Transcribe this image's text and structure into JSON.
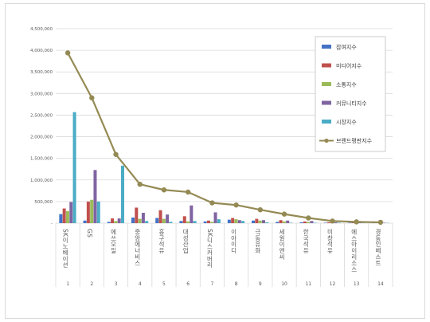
{
  "chart_data": {
    "type": "bar",
    "title": "",
    "xlabel": "",
    "ylabel": "",
    "ylim": [
      0,
      4500000
    ],
    "yticks": [
      0,
      500000,
      1000000,
      1500000,
      2000000,
      2500000,
      3000000,
      3500000,
      4000000,
      4500000
    ],
    "ytick_labels": [
      "-",
      "500,000",
      "1,000,000",
      "1,500,000",
      "2,000,000",
      "2,500,000",
      "3,000,000",
      "3,500,000",
      "4,000,000",
      "4,500,000"
    ],
    "grid": true,
    "legend_position": "top-right",
    "categories": [
      "SK이노베이션",
      "GS",
      "에쓰오일",
      "중앙에너비스",
      "흥구석유",
      "대성산업",
      "SK디스커버리",
      "이아이디",
      "극동유화",
      "세원이앤씨",
      "한국석유",
      "미창석유",
      "에스아이리소스",
      "경동인베스트"
    ],
    "index_labels": [
      "1",
      "2",
      "3",
      "4",
      "5",
      "6",
      "7",
      "8",
      "9",
      "10",
      "11",
      "12",
      "13",
      "14"
    ],
    "series": [
      {
        "name": "참여지수",
        "kind": "bar",
        "color": "#4472c4",
        "values": [
          210000,
          60000,
          30000,
          130000,
          120000,
          50000,
          40000,
          80000,
          60000,
          30000,
          20000,
          10000,
          10000,
          8000
        ]
      },
      {
        "name": "미디어지수",
        "kind": "bar",
        "color": "#c0504d",
        "values": [
          340000,
          500000,
          110000,
          360000,
          300000,
          160000,
          60000,
          120000,
          100000,
          70000,
          40000,
          20000,
          15000,
          10000
        ]
      },
      {
        "name": "소통지수",
        "kind": "bar",
        "color": "#9bbb59",
        "values": [
          280000,
          540000,
          50000,
          100000,
          100000,
          40000,
          30000,
          90000,
          60000,
          40000,
          30000,
          10000,
          10000,
          10000
        ]
      },
      {
        "name": "커뮤니티지수",
        "kind": "bar",
        "color": "#8064a2",
        "values": [
          490000,
          1230000,
          110000,
          240000,
          200000,
          410000,
          250000,
          70000,
          70000,
          60000,
          50000,
          20000,
          15000,
          10000
        ]
      },
      {
        "name": "시장지수",
        "kind": "bar",
        "color": "#4bacc6",
        "values": [
          2570000,
          500000,
          1330000,
          50000,
          30000,
          50000,
          90000,
          50000,
          20000,
          10000,
          10000,
          10000,
          5000,
          5000
        ]
      },
      {
        "name": "브랜드평판지수",
        "kind": "line",
        "color": "#948a54",
        "values": [
          3940000,
          2900000,
          1590000,
          900000,
          770000,
          720000,
          470000,
          420000,
          310000,
          210000,
          120000,
          50000,
          30000,
          20000
        ]
      }
    ]
  }
}
